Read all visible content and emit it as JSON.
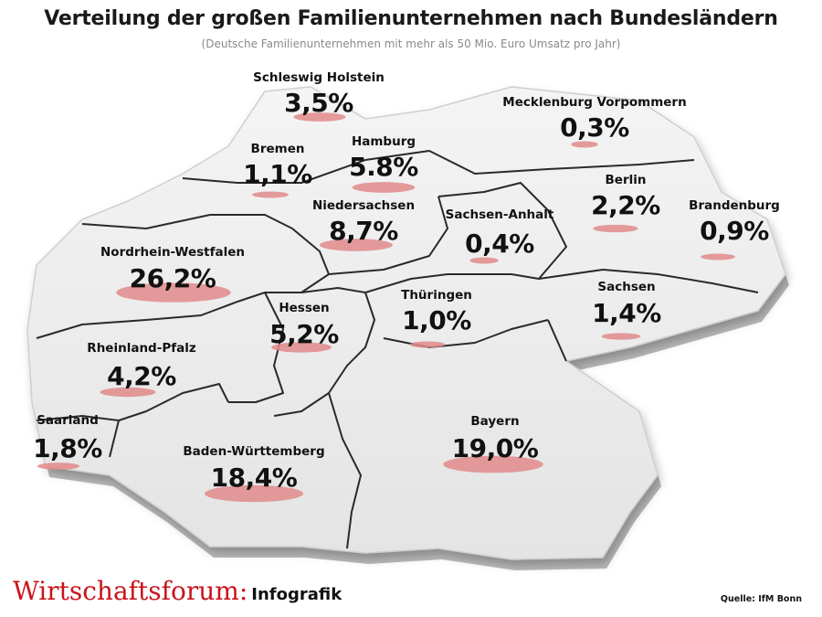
{
  "header": {
    "title": "Verteilung der großen Familienunternehmen nach Bundesländern",
    "subtitle": "(Deutsche Familienunternehmen mit mehr als 50 Mio. Euro Umsatz pro Jahr)"
  },
  "colors": {
    "map_fill": "#e9e9e9",
    "border_line": "#2a2a2a",
    "highlight": "#e08a8a"
  },
  "regions": [
    {
      "key": "sh",
      "name": "Schleswig Holstein",
      "value": "3,5%",
      "share": 3.5
    },
    {
      "key": "mv",
      "name": "Mecklenburg Vorpommern",
      "value": "0,3%",
      "share": 0.3
    },
    {
      "key": "hb",
      "name": "Bremen",
      "value": "1,1%",
      "share": 1.1
    },
    {
      "key": "hh",
      "name": "Hamburg",
      "value": "5.8%",
      "share": 5.8
    },
    {
      "key": "be",
      "name": "Berlin",
      "value": "2,2%",
      "share": 2.2
    },
    {
      "key": "ni",
      "name": "Niedersachsen",
      "value": "8,7%",
      "share": 8.7
    },
    {
      "key": "st",
      "name": "Sachsen-Anhalt",
      "value": "0,4%",
      "share": 0.4
    },
    {
      "key": "bb",
      "name": "Brandenburg",
      "value": "0,9%",
      "share": 0.9
    },
    {
      "key": "nw",
      "name": "Nordrhein-Westfalen",
      "value": "26,2%",
      "share": 26.2
    },
    {
      "key": "he",
      "name": "Hessen",
      "value": "5,2%",
      "share": 5.2
    },
    {
      "key": "th",
      "name": "Thüringen",
      "value": "1,0%",
      "share": 1.0
    },
    {
      "key": "sn",
      "name": "Sachsen",
      "value": "1,4%",
      "share": 1.4
    },
    {
      "key": "rp",
      "name": "Rheinland-Pfalz",
      "value": "4,2%",
      "share": 4.2
    },
    {
      "key": "sl",
      "name": "Saarland",
      "value": "1,8%",
      "share": 1.8
    },
    {
      "key": "bw",
      "name": "Baden-Württemberg",
      "value": "18,4%",
      "share": 18.4
    },
    {
      "key": "by",
      "name": "Bayern",
      "value": "19,0%",
      "share": 19.0
    }
  ],
  "footer": {
    "brand": "Wirtschaftsforum:",
    "brand_suffix": "Infografik",
    "source": "Quelle: IfM Bonn"
  }
}
